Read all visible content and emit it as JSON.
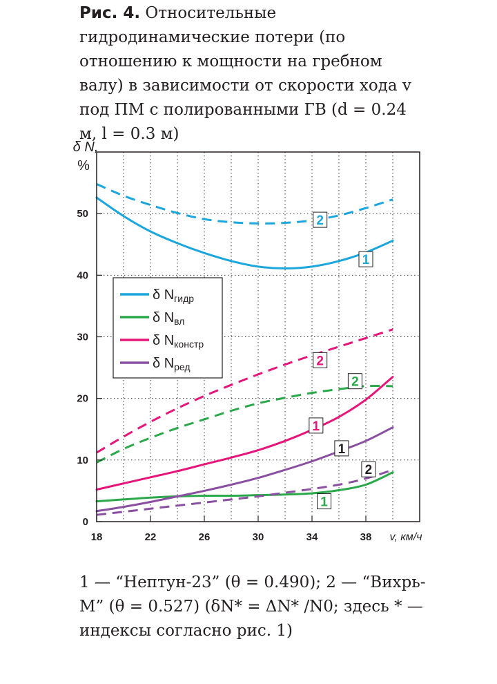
{
  "caption": {
    "fig_label": "Рис. 4.",
    "text": "Относительные гидродинамические потери (по отношению к мощности на гребном валу) в зависимости от скорости хода v под ПМ с полированными ГВ (d = 0.24 м, l = 0.3 м)"
  },
  "footnote": {
    "text": "1 — “Нептун-23” (θ = 0.490); 2 — “Вихрь-М” (θ = 0.527) (δN* = ΔN* /N0; здесь * — индексы согласно рис. 1)"
  },
  "chart_data": {
    "type": "line",
    "ylabel": "δ N, %",
    "xlabel": "v, км/ч",
    "xlim": [
      18,
      42
    ],
    "ylim": [
      0,
      60
    ],
    "xticks": [
      18,
      22,
      26,
      30,
      34,
      38
    ],
    "yticks": [
      0,
      10,
      20,
      30,
      40,
      50
    ],
    "grid": true,
    "legend_position": "left-center",
    "legend": [
      {
        "key": "gidr",
        "label": "δ N",
        "sub": "гидр",
        "color": "#1ba6dc"
      },
      {
        "key": "vl",
        "label": "δ N",
        "sub": "вл",
        "color": "#2aa84a"
      },
      {
        "key": "konstr",
        "label": "δ N",
        "sub": "констр",
        "color": "#e6157a"
      },
      {
        "key": "red",
        "label": "δ N",
        "sub": "ред",
        "color": "#8a4fa0"
      }
    ],
    "series": [
      {
        "group": "gidr",
        "variant": "1",
        "dashed": false,
        "color": "#1ba6dc",
        "x": [
          18,
          20,
          22,
          24,
          26,
          28,
          30,
          32,
          34,
          36,
          38,
          40
        ],
        "y": [
          52.6,
          49.6,
          47.1,
          45.2,
          43.6,
          42.3,
          41.4,
          41.1,
          41.4,
          42.3,
          43.7,
          45.6
        ]
      },
      {
        "group": "gidr",
        "variant": "2",
        "dashed": true,
        "color": "#1ba6dc",
        "x": [
          18,
          20,
          22,
          24,
          26,
          28,
          30,
          32,
          34,
          36,
          38,
          40
        ],
        "y": [
          54.8,
          52.9,
          51.4,
          50.1,
          49.1,
          48.6,
          48.4,
          48.5,
          48.9,
          49.7,
          50.9,
          52.3
        ]
      },
      {
        "group": "vl",
        "variant": "1",
        "dashed": false,
        "color": "#2aa84a",
        "x": [
          18,
          20,
          22,
          24,
          26,
          28,
          30,
          32,
          34,
          36,
          38,
          40
        ],
        "y": [
          3.3,
          3.6,
          3.9,
          4.1,
          4.2,
          4.2,
          4.3,
          4.4,
          4.6,
          5.1,
          6.0,
          8.0
        ]
      },
      {
        "group": "vl",
        "variant": "2",
        "dashed": true,
        "color": "#2aa84a",
        "x": [
          18,
          20,
          22,
          24,
          26,
          28,
          30,
          32,
          34,
          36,
          38,
          40
        ],
        "y": [
          9.6,
          11.8,
          13.6,
          15.2,
          16.6,
          18.0,
          19.2,
          20.1,
          20.9,
          21.5,
          22.0,
          22.0
        ]
      },
      {
        "group": "konstr",
        "variant": "1",
        "dashed": false,
        "color": "#e6157a",
        "x": [
          18,
          20,
          22,
          24,
          26,
          28,
          30,
          32,
          34,
          36,
          38,
          40
        ],
        "y": [
          5.2,
          6.2,
          7.2,
          8.2,
          9.3,
          10.4,
          11.6,
          13.1,
          14.9,
          17.0,
          19.8,
          23.5
        ]
      },
      {
        "group": "konstr",
        "variant": "2",
        "dashed": true,
        "color": "#e6157a",
        "x": [
          18,
          20,
          22,
          24,
          26,
          28,
          30,
          32,
          34,
          36,
          38,
          40
        ],
        "y": [
          11.2,
          13.8,
          16.2,
          18.4,
          20.4,
          22.2,
          23.9,
          25.5,
          27.0,
          28.4,
          29.8,
          31.2
        ]
      },
      {
        "group": "red",
        "variant": "1",
        "dashed": false,
        "color": "#8a4fa0",
        "x": [
          18,
          20,
          22,
          24,
          26,
          28,
          30,
          32,
          34,
          36,
          38,
          40
        ],
        "y": [
          1.7,
          2.4,
          3.2,
          4.1,
          5.0,
          6.0,
          7.1,
          8.4,
          9.8,
          11.4,
          13.1,
          15.3
        ]
      },
      {
        "group": "red",
        "variant": "2",
        "dashed": true,
        "color": "#8a4fa0",
        "x": [
          18,
          20,
          22,
          24,
          26,
          28,
          30,
          32,
          34,
          36,
          38,
          40
        ],
        "y": [
          1.1,
          1.6,
          2.1,
          2.6,
          3.1,
          3.6,
          4.1,
          4.7,
          5.3,
          6.0,
          7.0,
          8.4
        ]
      }
    ],
    "annotations": [
      {
        "text": "2",
        "x": 34.6,
        "y": 49.0,
        "color": "#1ba6dc"
      },
      {
        "text": "1",
        "x": 38.0,
        "y": 42.6,
        "color": "#1ba6dc"
      },
      {
        "text": "2",
        "x": 34.6,
        "y": 26.2,
        "color": "#e6157a"
      },
      {
        "text": "2",
        "x": 37.2,
        "y": 22.8,
        "color": "#2aa84a"
      },
      {
        "text": "1",
        "x": 34.3,
        "y": 15.6,
        "color": "#e6157a"
      },
      {
        "text": "1",
        "x": 36.2,
        "y": 11.9,
        "color": "#231f20"
      },
      {
        "text": "2",
        "x": 38.2,
        "y": 8.5,
        "color": "#231f20"
      },
      {
        "text": "1",
        "x": 34.9,
        "y": 3.3,
        "color": "#2aa84a"
      }
    ]
  }
}
